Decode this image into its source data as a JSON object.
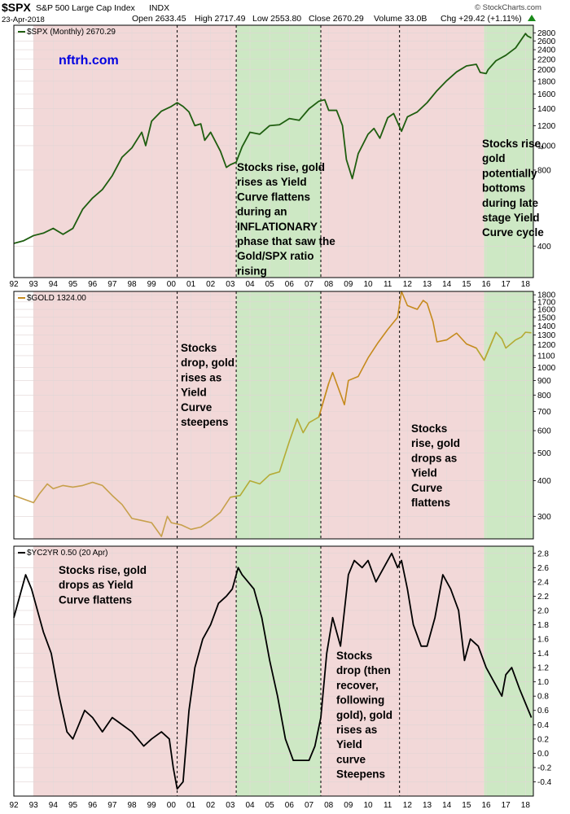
{
  "header": {
    "symbol": "$SPX",
    "name": "S&P 500 Large Cap Index",
    "exchange": "INDX",
    "date": "23-Apr-2018",
    "open": "Open 2633.45",
    "high": "High 2717.49",
    "low": "Low 2553.80",
    "close": "Close 2670.29",
    "volume": "Volume 33.0B",
    "chg": "Chg +29.42 (+1.11%)",
    "chg_arrow": "triangle-up-icon",
    "source": "© StockCharts.com"
  },
  "watermark": "nftrh.com",
  "colors": {
    "pink_zone": "#f2d8d8",
    "green_zone": "#cde8c4",
    "spx_line": "#1f5e10",
    "gold_line_a": "#c7a04c",
    "gold_line_b": "#c58a1d",
    "gold_line_c": "#b4ab35",
    "yc_line": "#000000",
    "watermark": "#0000e0"
  },
  "x_axis": {
    "range": [
      1992.0,
      2018.4
    ],
    "labels": [
      "92",
      "93",
      "94",
      "95",
      "96",
      "97",
      "98",
      "99",
      "00",
      "01",
      "02",
      "03",
      "04",
      "05",
      "06",
      "07",
      "08",
      "09",
      "10",
      "11",
      "12",
      "13",
      "14",
      "15",
      "16",
      "17",
      "18"
    ]
  },
  "zones": [
    {
      "type": "pink",
      "from": 1993.0,
      "to": 2003.3
    },
    {
      "type": "green",
      "from": 2003.3,
      "to": 2007.6
    },
    {
      "type": "pink",
      "from": 2007.6,
      "to": 2011.6
    },
    {
      "type": "pink",
      "from": 2011.6,
      "to": 2015.9
    },
    {
      "type": "green",
      "from": 2015.9,
      "to": 2018.4
    }
  ],
  "dividers": [
    2000.3,
    2003.3,
    2007.6,
    2011.6
  ],
  "chart_data": [
    {
      "type": "line",
      "title": "$SPX (Monthly) 2670.29",
      "scale": "log",
      "ylim": [
        300,
        3000
      ],
      "ticks": [
        400,
        800,
        1000,
        1200,
        1400,
        1600,
        1800,
        2000,
        2200,
        2400,
        2600,
        2800
      ],
      "series": [
        {
          "name": "$SPX (Monthly)",
          "x": [
            1992.0,
            1992.5,
            1993.0,
            1993.5,
            1994.0,
            1994.5,
            1995.0,
            1995.5,
            1996.0,
            1996.5,
            1997.0,
            1997.5,
            1998.0,
            1998.5,
            1998.7,
            1999.0,
            1999.5,
            2000.0,
            2000.3,
            2000.6,
            2000.9,
            2001.2,
            2001.5,
            2001.7,
            2002.0,
            2002.5,
            2002.8,
            2003.0,
            2003.3,
            2003.6,
            2004.0,
            2004.5,
            2005.0,
            2005.5,
            2006.0,
            2006.5,
            2007.0,
            2007.5,
            2007.8,
            2008.0,
            2008.4,
            2008.7,
            2008.9,
            2009.2,
            2009.5,
            2010.0,
            2010.3,
            2010.6,
            2011.0,
            2011.3,
            2011.7,
            2012.0,
            2012.5,
            2013.0,
            2013.5,
            2014.0,
            2014.5,
            2015.0,
            2015.5,
            2015.7,
            2016.0,
            2016.1,
            2016.5,
            2017.0,
            2017.5,
            2018.0,
            2018.1,
            2018.3
          ],
          "values": [
            410,
            420,
            440,
            450,
            470,
            445,
            470,
            560,
            620,
            670,
            760,
            900,
            980,
            1130,
            1000,
            1250,
            1370,
            1430,
            1480,
            1430,
            1360,
            1200,
            1220,
            1050,
            1130,
            950,
            820,
            840,
            860,
            990,
            1130,
            1110,
            1200,
            1210,
            1280,
            1260,
            1400,
            1500,
            1520,
            1380,
            1380,
            1200,
            880,
            740,
            930,
            1110,
            1170,
            1070,
            1290,
            1340,
            1140,
            1300,
            1360,
            1480,
            1650,
            1810,
            1960,
            2070,
            2100,
            1950,
            1930,
            2000,
            2170,
            2280,
            2440,
            2780,
            2720,
            2670
          ]
        }
      ]
    },
    {
      "type": "line",
      "title": "$GOLD 1324.00",
      "scale": "log",
      "ylim": [
        250,
        1850
      ],
      "ticks": [
        300,
        400,
        500,
        600,
        700,
        800,
        900,
        1000,
        1100,
        1200,
        1300,
        1400,
        1500,
        1600,
        1700,
        1800
      ],
      "series": [
        {
          "name": "$GOLD",
          "x": [
            1992.0,
            1992.5,
            1993.0,
            1993.3,
            1993.7,
            1994.0,
            1994.5,
            1995.0,
            1995.5,
            1996.0,
            1996.5,
            1997.0,
            1997.5,
            1998.0,
            1998.5,
            1999.0,
            1999.5,
            1999.8,
            2000.0,
            2000.5,
            2001.0,
            2001.5,
            2002.0,
            2002.5,
            2003.0,
            2003.5,
            2004.0,
            2004.5,
            2005.0,
            2005.5,
            2006.0,
            2006.4,
            2006.7,
            2007.0,
            2007.5,
            2008.0,
            2008.2,
            2008.8,
            2009.0,
            2009.5,
            2010.0,
            2010.5,
            2011.0,
            2011.5,
            2011.7,
            2012.0,
            2012.5,
            2012.8,
            2013.0,
            2013.3,
            2013.5,
            2014.0,
            2014.5,
            2015.0,
            2015.5,
            2015.9,
            2016.0,
            2016.5,
            2016.8,
            2017.0,
            2017.5,
            2017.8,
            2018.0,
            2018.3
          ],
          "values": [
            355,
            345,
            335,
            360,
            390,
            375,
            385,
            380,
            385,
            395,
            385,
            355,
            330,
            295,
            290,
            285,
            255,
            300,
            285,
            280,
            270,
            275,
            290,
            310,
            350,
            355,
            400,
            390,
            420,
            430,
            550,
            660,
            590,
            640,
            670,
            880,
            960,
            740,
            900,
            930,
            1080,
            1220,
            1360,
            1500,
            1850,
            1650,
            1600,
            1720,
            1680,
            1450,
            1230,
            1250,
            1320,
            1210,
            1170,
            1060,
            1100,
            1330,
            1260,
            1170,
            1250,
            1280,
            1330,
            1324
          ]
        }
      ]
    },
    {
      "type": "line",
      "title": "$YC2YR 0.50 (20 Apr)",
      "scale": "linear",
      "ylim": [
        -0.6,
        2.9
      ],
      "ticks": [
        -0.4,
        -0.2,
        0.0,
        0.2,
        0.4,
        0.6,
        0.8,
        1.0,
        1.2,
        1.4,
        1.6,
        1.8,
        2.0,
        2.2,
        2.4,
        2.6,
        2.8
      ],
      "series": [
        {
          "name": "$YC2YR",
          "x": [
            1992.0,
            1992.3,
            1992.6,
            1992.9,
            1993.2,
            1993.5,
            1993.9,
            1994.3,
            1994.7,
            1995.0,
            1995.3,
            1995.6,
            1996.0,
            1996.5,
            1997.0,
            1997.5,
            1998.0,
            1998.3,
            1998.6,
            1999.0,
            1999.5,
            1999.9,
            2000.1,
            2000.3,
            2000.6,
            2000.9,
            2001.2,
            2001.6,
            2002.0,
            2002.4,
            2002.8,
            2003.1,
            2003.4,
            2003.6,
            2003.9,
            2004.2,
            2004.6,
            2005.0,
            2005.4,
            2005.8,
            2006.2,
            2006.6,
            2007.0,
            2007.3,
            2007.6,
            2007.9,
            2008.2,
            2008.6,
            2009.0,
            2009.3,
            2009.7,
            2010.0,
            2010.4,
            2010.8,
            2011.2,
            2011.5,
            2011.7,
            2012.0,
            2012.3,
            2012.7,
            2013.0,
            2013.4,
            2013.8,
            2014.2,
            2014.6,
            2014.9,
            2015.2,
            2015.6,
            2016.0,
            2016.4,
            2016.8,
            2017.0,
            2017.3,
            2017.7,
            2018.0,
            2018.3
          ],
          "values": [
            1.9,
            2.2,
            2.5,
            2.3,
            2.0,
            1.7,
            1.4,
            0.8,
            0.3,
            0.2,
            0.4,
            0.6,
            0.5,
            0.3,
            0.5,
            0.4,
            0.3,
            0.2,
            0.1,
            0.2,
            0.3,
            0.2,
            -0.2,
            -0.5,
            -0.4,
            0.6,
            1.2,
            1.6,
            1.8,
            2.1,
            2.2,
            2.3,
            2.6,
            2.5,
            2.4,
            2.3,
            1.9,
            1.3,
            0.8,
            0.2,
            -0.1,
            -0.1,
            -0.1,
            0.1,
            0.5,
            1.4,
            1.9,
            1.5,
            2.5,
            2.7,
            2.6,
            2.7,
            2.4,
            2.6,
            2.8,
            2.6,
            2.7,
            2.3,
            1.8,
            1.5,
            1.5,
            1.9,
            2.5,
            2.3,
            2.0,
            1.3,
            1.6,
            1.5,
            1.2,
            1.0,
            0.8,
            1.1,
            1.2,
            0.9,
            0.7,
            0.5
          ]
        }
      ]
    }
  ],
  "annotations": [
    {
      "panel": 0,
      "lines": [
        "Stocks rise, gold",
        "rises as Yield",
        "Curve flattens",
        "during an",
        "INFLATIONARY",
        "phase that saw the",
        "Gold/SPX ratio",
        "rising"
      ]
    },
    {
      "panel": 0,
      "lines": [
        "Stocks rise,",
        "gold",
        "potentially",
        "bottoms",
        "during late",
        "stage Yield",
        "Curve cycle"
      ]
    },
    {
      "panel": 1,
      "lines": [
        "Stocks",
        "drop, gold",
        "rises as",
        "Yield",
        "Curve",
        "steepens"
      ]
    },
    {
      "panel": 1,
      "lines": [
        "Stocks",
        "rise, gold",
        "drops as",
        "Yield",
        "Curve",
        "flattens"
      ]
    },
    {
      "panel": 2,
      "lines": [
        "Stocks rise, gold",
        "drops as Yield",
        "Curve flattens"
      ]
    },
    {
      "panel": 2,
      "lines": [
        "Stocks",
        "drop (then",
        "recover,",
        "following",
        "gold), gold",
        "rises as",
        "Yield",
        "curve",
        "Steepens"
      ]
    }
  ]
}
